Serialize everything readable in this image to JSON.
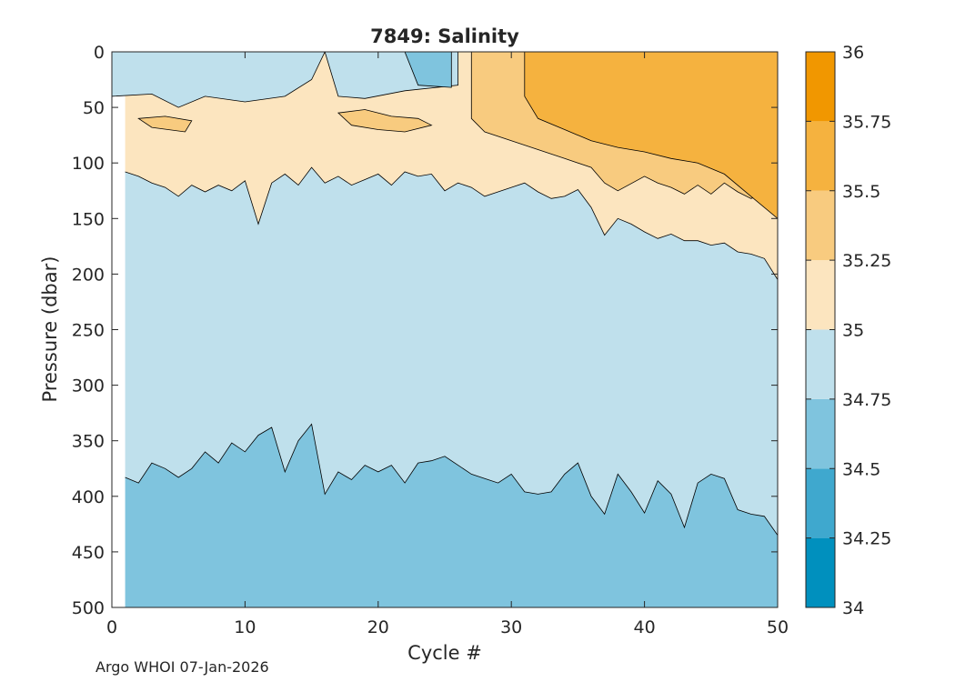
{
  "chart_data": {
    "type": "heatmap",
    "subtype": "filled-contour",
    "title": "7849:  Salinity",
    "xlabel": "Cycle #",
    "ylabel": "Pressure (dbar)",
    "xlim": [
      0,
      50
    ],
    "ylim": [
      0,
      500
    ],
    "y_reversed": true,
    "xticks": [
      0,
      10,
      20,
      30,
      40,
      50
    ],
    "yticks": [
      0,
      50,
      100,
      150,
      200,
      250,
      300,
      350,
      400,
      450,
      500
    ],
    "colorbar": {
      "ticks": [
        34,
        34.25,
        34.5,
        34.75,
        35,
        35.25,
        35.5,
        35.75,
        36
      ],
      "tick_labels": [
        "34",
        "34.25",
        "34.5",
        "34.75",
        "35",
        "35.25",
        "35.5",
        "35.75",
        "36"
      ],
      "colors": [
        "#0090BE",
        "#3FA8CE",
        "#7FC4DE",
        "#BFE0EC",
        "#FCE5BF",
        "#F8CB7F",
        "#F5B23F",
        "#F19700"
      ]
    },
    "data_start_cycle": 1,
    "contours": [
      {
        "level": 34.75,
        "description": "top of 34.5-34.75 band (deep fresher water)",
        "points": [
          [
            1,
            383
          ],
          [
            2,
            388
          ],
          [
            3,
            370
          ],
          [
            4,
            375
          ],
          [
            5,
            383
          ],
          [
            6,
            375
          ],
          [
            7,
            360
          ],
          [
            8,
            370
          ],
          [
            9,
            352
          ],
          [
            10,
            360
          ],
          [
            11,
            345
          ],
          [
            12,
            338
          ],
          [
            13,
            378
          ],
          [
            14,
            350
          ],
          [
            15,
            335
          ],
          [
            16,
            398
          ],
          [
            17,
            378
          ],
          [
            18,
            385
          ],
          [
            19,
            372
          ],
          [
            20,
            378
          ],
          [
            21,
            372
          ],
          [
            22,
            388
          ],
          [
            23,
            370
          ],
          [
            24,
            368
          ],
          [
            25,
            364
          ],
          [
            26,
            372
          ],
          [
            27,
            380
          ],
          [
            28,
            384
          ],
          [
            29,
            388
          ],
          [
            30,
            380
          ],
          [
            31,
            396
          ],
          [
            32,
            398
          ],
          [
            33,
            396
          ],
          [
            34,
            380
          ],
          [
            35,
            370
          ],
          [
            36,
            400
          ],
          [
            37,
            416
          ],
          [
            38,
            380
          ],
          [
            39,
            396
          ],
          [
            40,
            415
          ],
          [
            41,
            386
          ],
          [
            42,
            398
          ],
          [
            43,
            428
          ],
          [
            44,
            388
          ],
          [
            45,
            380
          ],
          [
            46,
            384
          ],
          [
            47,
            412
          ],
          [
            48,
            416
          ],
          [
            49,
            418
          ],
          [
            50,
            435
          ]
        ]
      },
      {
        "level": 35.0,
        "description": "base of the upper saline layer",
        "points": [
          [
            1,
            108
          ],
          [
            2,
            112
          ],
          [
            3,
            118
          ],
          [
            4,
            122
          ],
          [
            5,
            130
          ],
          [
            6,
            120
          ],
          [
            7,
            126
          ],
          [
            8,
            120
          ],
          [
            9,
            125
          ],
          [
            10,
            116
          ],
          [
            11,
            155
          ],
          [
            12,
            118
          ],
          [
            13,
            110
          ],
          [
            14,
            120
          ],
          [
            15,
            104
          ],
          [
            16,
            118
          ],
          [
            17,
            112
          ],
          [
            18,
            120
          ],
          [
            19,
            115
          ],
          [
            20,
            110
          ],
          [
            21,
            120
          ],
          [
            22,
            108
          ],
          [
            23,
            112
          ],
          [
            24,
            110
          ],
          [
            25,
            125
          ],
          [
            26,
            118
          ],
          [
            27,
            122
          ],
          [
            28,
            130
          ],
          [
            29,
            126
          ],
          [
            30,
            122
          ],
          [
            31,
            118
          ],
          [
            32,
            126
          ],
          [
            33,
            132
          ],
          [
            34,
            130
          ],
          [
            35,
            124
          ],
          [
            36,
            140
          ],
          [
            37,
            165
          ],
          [
            38,
            150
          ],
          [
            39,
            155
          ],
          [
            40,
            162
          ],
          [
            41,
            168
          ],
          [
            42,
            164
          ],
          [
            43,
            170
          ],
          [
            44,
            170
          ],
          [
            45,
            174
          ],
          [
            46,
            172
          ],
          [
            47,
            180
          ],
          [
            48,
            182
          ],
          [
            49,
            186
          ],
          [
            50,
            205
          ]
        ]
      },
      {
        "level": 35.25,
        "description": "base of the 35.25-35.5 core",
        "points": [
          [
            27,
            60
          ],
          [
            28,
            72
          ],
          [
            30,
            80
          ],
          [
            32,
            88
          ],
          [
            34,
            96
          ],
          [
            36,
            104
          ],
          [
            37,
            118
          ],
          [
            38,
            125
          ],
          [
            40,
            112
          ],
          [
            41,
            118
          ],
          [
            42,
            122
          ],
          [
            43,
            128
          ],
          [
            44,
            120
          ],
          [
            45,
            128
          ],
          [
            46,
            118
          ],
          [
            47,
            126
          ],
          [
            48,
            132
          ],
          [
            49,
            128
          ],
          [
            50,
            140
          ]
        ]
      },
      {
        "level": 35.5,
        "description": "upper-right high-salinity core",
        "points": [
          [
            31,
            0
          ],
          [
            35,
            0
          ],
          [
            45,
            0
          ],
          [
            50,
            0
          ],
          [
            50,
            150
          ],
          [
            48,
            130
          ],
          [
            46,
            110
          ],
          [
            44,
            100
          ],
          [
            42,
            96
          ],
          [
            40,
            90
          ],
          [
            38,
            86
          ],
          [
            36,
            80
          ],
          [
            34,
            70
          ],
          [
            32,
            60
          ],
          [
            31,
            40
          ]
        ]
      }
    ],
    "notes": "Near-surface band is 34.75-35 on the left; a thin 35-35.25 layer sits between roughly 60-120 dbar; salinity increases towards later cycles at the surface, reaching 35.5-35.75."
  },
  "footer": {
    "text": "Argo WHOI 07-Jan-2026"
  }
}
